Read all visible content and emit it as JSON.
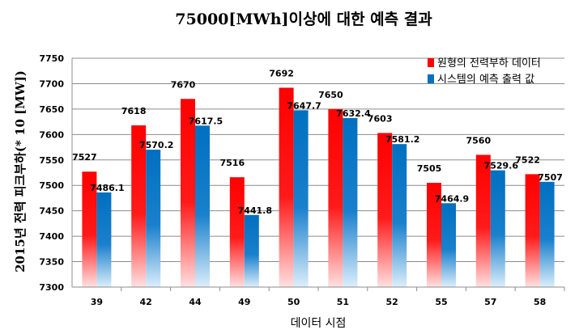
{
  "chart_data": {
    "type": "bar",
    "title": "75000[MWh]이상에 대한 예측 결과",
    "xlabel": "데이터 시점",
    "ylabel": "2015년 전력 피크부하(* 10 [MW])",
    "ylim": [
      7300,
      7750
    ],
    "yticks": [
      7300,
      7350,
      7400,
      7450,
      7500,
      7550,
      7600,
      7650,
      7700,
      7750
    ],
    "grid": true,
    "legend_position": "top-right",
    "categories": [
      "39",
      "42",
      "44",
      "49",
      "50",
      "51",
      "52",
      "55",
      "57",
      "58"
    ],
    "series": [
      {
        "name": "원형의 전력부하 데이터",
        "color": "#ff0000",
        "values": [
          7527,
          7618,
          7670,
          7516,
          7692,
          7650,
          7603,
          7505,
          7560,
          7522
        ],
        "labels": [
          "7527",
          "7618",
          "7670",
          "7516",
          "7692",
          "7650",
          "7603",
          "7505",
          "7560",
          "7522"
        ]
      },
      {
        "name": "시스템의 예측 출력 값",
        "color": "#0070c0",
        "values": [
          7486.1,
          7570.2,
          7617.5,
          7441.8,
          7647.7,
          7632.4,
          7581.2,
          7464.9,
          7529.6,
          7507
        ],
        "labels": [
          "7486.1",
          "7570.2",
          "7617.5",
          "7441.8",
          "7647.7",
          "7632.4",
          "7581.2",
          "7464.9",
          "7529.6",
          "7507"
        ]
      }
    ]
  }
}
